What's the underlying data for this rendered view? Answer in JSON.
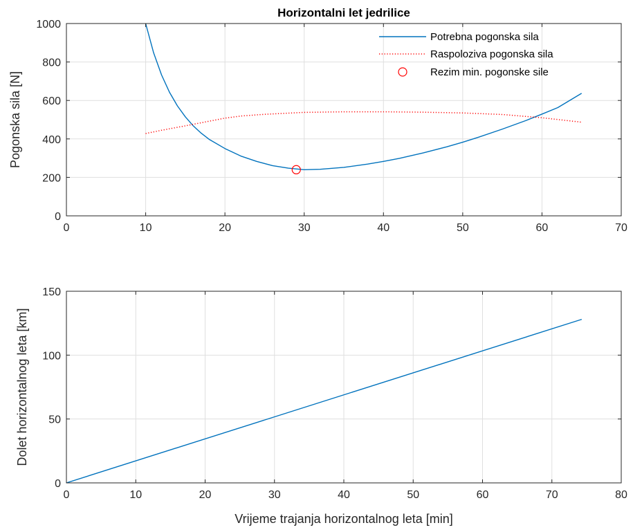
{
  "figure": {
    "colors": {
      "blue": "#0072BD",
      "red": "#FF0000",
      "grid": "#DFDFDF",
      "axis": "#262626"
    }
  },
  "chart_data": [
    {
      "type": "line",
      "title": "Horizontalni let jedrilice",
      "xlabel": "",
      "ylabel": "Pogonska sila [N]",
      "xlim": [
        0,
        70
      ],
      "ylim": [
        0,
        1000
      ],
      "xticks": [
        0,
        10,
        20,
        30,
        40,
        50,
        60,
        70
      ],
      "yticks": [
        0,
        200,
        400,
        600,
        800,
        1000
      ],
      "grid": true,
      "legend": "top-right",
      "series": [
        {
          "name": "Potrebna pogonska sila",
          "style": "solid",
          "color": "#0072BD",
          "x": [
            10,
            11,
            12,
            13,
            14,
            15,
            16,
            17,
            18,
            20,
            22,
            24,
            26,
            28,
            30,
            32,
            35,
            38,
            40,
            42,
            45,
            48,
            50,
            52,
            55,
            58,
            60,
            62,
            65
          ],
          "y": [
            1000,
            848,
            733,
            643,
            572,
            515,
            468,
            430,
            398,
            350,
            311,
            283,
            261,
            248,
            240,
            242,
            252,
            269,
            283,
            299,
            327,
            359,
            383,
            409,
            451,
            496,
            529,
            563,
            637
          ]
        },
        {
          "name": "Raspoloziva pogonska sila",
          "style": "dotted",
          "color": "#FF0000",
          "x": [
            10,
            12,
            15,
            18,
            20,
            22,
            25,
            30,
            35,
            40,
            45,
            50,
            55,
            60,
            65
          ],
          "y": [
            428,
            445,
            468,
            492,
            508,
            519,
            528,
            538,
            541,
            541,
            539,
            535,
            527,
            510,
            487
          ]
        },
        {
          "name": "Rezim min. pogonske sile",
          "style": "marker-circle",
          "color": "#FF0000",
          "x": [
            29
          ],
          "y": [
            240
          ]
        }
      ]
    },
    {
      "type": "line",
      "title": "",
      "xlabel": "Vrijeme trajanja horizontalnog leta [min]",
      "ylabel": "Dolet horizontalnog leta [km]",
      "xlim": [
        0,
        80
      ],
      "ylim": [
        0,
        150
      ],
      "xticks": [
        0,
        10,
        20,
        30,
        40,
        50,
        60,
        70,
        80
      ],
      "yticks": [
        0,
        50,
        100,
        150
      ],
      "grid": true,
      "series": [
        {
          "name": "",
          "style": "solid",
          "color": "#0072BD",
          "x": [
            0,
            74.3
          ],
          "y": [
            0,
            128
          ]
        }
      ]
    }
  ]
}
